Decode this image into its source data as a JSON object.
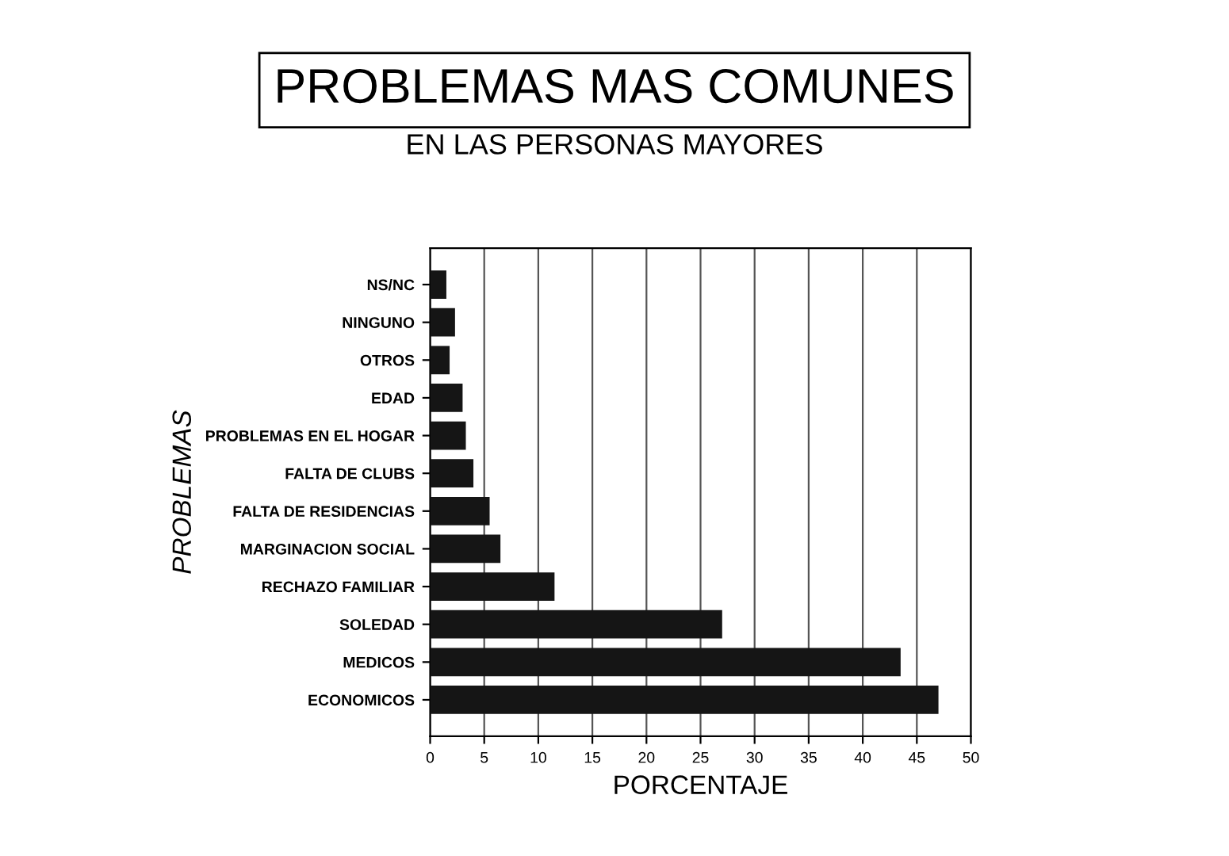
{
  "chart_data": {
    "type": "bar",
    "orientation": "horizontal",
    "title": "PROBLEMAS MAS COMUNES",
    "subtitle": "EN LAS PERSONAS MAYORES",
    "xlabel": "PORCENTAJE",
    "ylabel": "PROBLEMAS",
    "categories": [
      "NS/NC",
      "NINGUNO",
      "OTROS",
      "EDAD",
      "PROBLEMAS EN EL HOGAR",
      "FALTA DE CLUBS",
      "FALTA DE RESIDENCIAS",
      "MARGINACION SOCIAL",
      "RECHAZO FAMILIAR",
      "SOLEDAD",
      "MEDICOS",
      "ECONOMICOS"
    ],
    "values": [
      1.5,
      2.3,
      1.8,
      3,
      3.3,
      4,
      5.5,
      6.5,
      11.5,
      27,
      43.5,
      47
    ],
    "color": "#151515",
    "xlim": [
      0,
      50
    ],
    "xticks": [
      0,
      5,
      10,
      15,
      20,
      25,
      30,
      35,
      40,
      45,
      50
    ],
    "grid": "x"
  }
}
